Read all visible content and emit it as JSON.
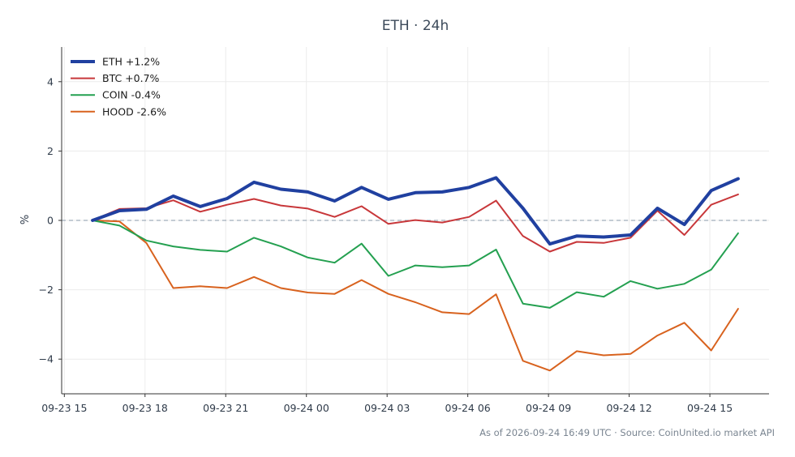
{
  "chart_data": {
    "type": "line",
    "title": "ETH · 24h",
    "ylabel": "%",
    "xlabel": "",
    "ylim": [
      -5,
      5
    ],
    "y_ticks": [
      -4,
      -2,
      0,
      2,
      4
    ],
    "y_tick_labels": [
      "−4",
      "−2",
      "0",
      "2",
      "4"
    ],
    "x_ticks": [
      {
        "t": 0,
        "label": "09-23 15"
      },
      {
        "t": 3,
        "label": "09-23 18"
      },
      {
        "t": 6,
        "label": "09-23 21"
      },
      {
        "t": 9,
        "label": "09-24 00"
      },
      {
        "t": 12,
        "label": "09-24 03"
      },
      {
        "t": 15,
        "label": "09-24 06"
      },
      {
        "t": 18,
        "label": "09-24 09"
      },
      {
        "t": 21,
        "label": "09-24 12"
      },
      {
        "t": 24,
        "label": "09-24 15"
      }
    ],
    "x": [
      1.05,
      2.05,
      3.05,
      4.05,
      5.05,
      6.05,
      7.05,
      8.05,
      9.05,
      10.05,
      11.05,
      12.05,
      13.05,
      14.05,
      15.05,
      16.05,
      17.05,
      18.05,
      19.05,
      20.05,
      21.05,
      22.05,
      23.05,
      24.05,
      25.05
    ],
    "xlim": [
      -0.1,
      26.2
    ],
    "grid": true,
    "zero_line": true,
    "legend_position": "top-left",
    "series": [
      {
        "name": "ETH +1.2%",
        "color": "#2040a0",
        "width": 4,
        "values": [
          0,
          0.28,
          0.32,
          0.7,
          0.4,
          0.63,
          1.1,
          0.9,
          0.82,
          0.56,
          0.95,
          0.61,
          0.8,
          0.82,
          0.95,
          1.23,
          0.35,
          -0.68,
          -0.45,
          -0.48,
          -0.42,
          0.35,
          -0.12,
          0.86,
          1.2
        ]
      },
      {
        "name": "BTC +0.7%",
        "color": "#c8373a",
        "width": 2,
        "values": [
          0,
          0.33,
          0.35,
          0.58,
          0.25,
          0.45,
          0.62,
          0.43,
          0.34,
          0.1,
          0.41,
          -0.1,
          0.01,
          -0.06,
          0.1,
          0.57,
          -0.45,
          -0.9,
          -0.62,
          -0.65,
          -0.5,
          0.28,
          -0.42,
          0.45,
          0.75
        ]
      },
      {
        "name": "COIN -0.4%",
        "color": "#24a050",
        "width": 2,
        "values": [
          0,
          -0.15,
          -0.58,
          -0.75,
          -0.85,
          -0.9,
          -0.5,
          -0.75,
          -1.07,
          -1.22,
          -0.67,
          -1.6,
          -1.3,
          -1.35,
          -1.3,
          -0.84,
          -2.4,
          -2.52,
          -2.07,
          -2.2,
          -1.75,
          -1.97,
          -1.83,
          -1.42,
          -0.37
        ]
      },
      {
        "name": "HOOD -2.6%",
        "color": "#d8621e",
        "width": 2,
        "values": [
          0,
          -0.03,
          -0.65,
          -1.95,
          -1.9,
          -1.95,
          -1.63,
          -1.95,
          -2.08,
          -2.12,
          -1.72,
          -2.12,
          -2.36,
          -2.65,
          -2.7,
          -2.13,
          -4.05,
          -4.33,
          -3.77,
          -3.89,
          -3.85,
          -3.32,
          -2.95,
          -3.75,
          -2.55
        ]
      }
    ]
  },
  "footer": "As of 2026-09-24 16:49 UTC · Source: CoinUnited.io market API"
}
